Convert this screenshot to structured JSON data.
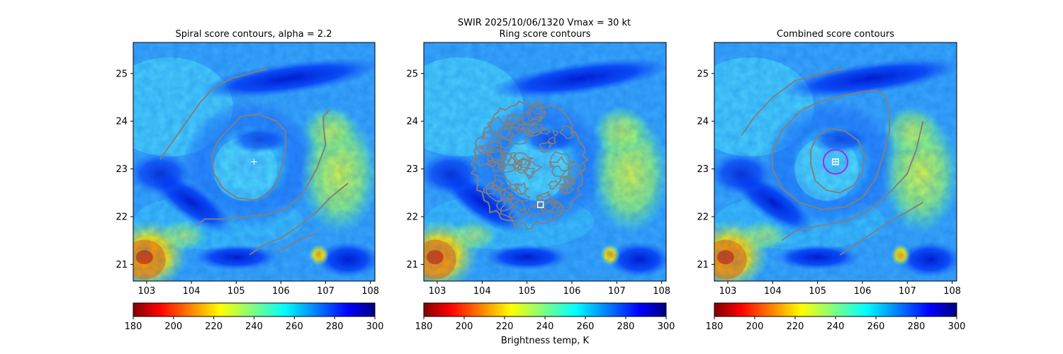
{
  "figure": {
    "suptitle_line1": "SWIR  2025/10/06/1320    Vmax = 30 kt",
    "colorbar_label": "Brightness temp, K"
  },
  "chart_data": [
    {
      "type": "heatmap",
      "title": "Spiral score contours, alpha =  2.2",
      "xlim": [
        102.7,
        108.1
      ],
      "ylim": [
        20.65,
        25.65
      ],
      "xticks": [
        103,
        104,
        105,
        106,
        107,
        108
      ],
      "yticks": [
        21,
        22,
        23,
        24,
        25
      ],
      "colormap": "jet_r",
      "color_range": [
        180,
        300
      ],
      "colorbar_ticks": [
        180,
        200,
        220,
        240,
        260,
        280,
        300
      ],
      "center_marker": {
        "type": "cross",
        "lon": 105.4,
        "lat": 23.15,
        "color": "#ffffff"
      },
      "contours": [
        [
          [
            103.3,
            23.2
          ],
          [
            103.6,
            23.6
          ],
          [
            103.9,
            24.0
          ],
          [
            104.2,
            24.4
          ],
          [
            104.5,
            24.7
          ],
          [
            104.9,
            24.9
          ],
          [
            105.3,
            25.0
          ],
          [
            105.7,
            25.1
          ]
        ],
        [
          [
            104.8,
            23.8
          ],
          [
            105.1,
            24.1
          ],
          [
            105.5,
            24.15
          ],
          [
            105.9,
            24.0
          ],
          [
            106.1,
            23.8
          ],
          [
            106.1,
            23.4
          ],
          [
            106.0,
            23.0
          ],
          [
            105.9,
            22.7
          ],
          [
            105.7,
            22.45
          ],
          [
            105.4,
            22.35
          ],
          [
            105.0,
            22.4
          ],
          [
            104.7,
            22.6
          ],
          [
            104.5,
            22.9
          ],
          [
            104.45,
            23.3
          ],
          [
            104.6,
            23.6
          ],
          [
            104.8,
            23.8
          ]
        ],
        [
          [
            104.1,
            21.8
          ],
          [
            104.3,
            21.95
          ],
          [
            104.7,
            21.95
          ],
          [
            105.2,
            22.0
          ],
          [
            105.7,
            22.05
          ],
          [
            106.1,
            22.15
          ],
          [
            106.5,
            22.5
          ],
          [
            106.8,
            23.0
          ],
          [
            107.0,
            23.5
          ],
          [
            106.95,
            23.9
          ],
          [
            106.95,
            24.1
          ],
          [
            107.1,
            24.25
          ]
        ],
        [
          [
            105.3,
            21.2
          ],
          [
            105.6,
            21.4
          ],
          [
            106.0,
            21.55
          ],
          [
            106.4,
            21.8
          ],
          [
            106.8,
            22.1
          ],
          [
            107.1,
            22.4
          ],
          [
            107.5,
            22.7
          ]
        ],
        [
          [
            105.9,
            21.25
          ],
          [
            106.2,
            21.4
          ],
          [
            106.5,
            21.55
          ],
          [
            106.8,
            21.65
          ]
        ]
      ]
    },
    {
      "type": "heatmap",
      "title": "Ring score contours",
      "xlim": [
        102.7,
        108.1
      ],
      "ylim": [
        20.65,
        25.65
      ],
      "xticks": [
        103,
        104,
        105,
        106,
        107,
        108
      ],
      "yticks": [
        21,
        22,
        23,
        24,
        25
      ],
      "colormap": "jet_r",
      "color_range": [
        180,
        300
      ],
      "colorbar_ticks": [
        180,
        200,
        220,
        240,
        260,
        280,
        300
      ],
      "center_marker": {
        "type": "square",
        "lon": 105.3,
        "lat": 22.25,
        "color": "#ffffff"
      },
      "ring_contour_region": {
        "center": [
          105.05,
          23.1
        ],
        "radius_lon": 1.25,
        "radius_lat": 1.3
      }
    },
    {
      "type": "heatmap",
      "title": "Combined score contours",
      "xlim": [
        102.7,
        108.1
      ],
      "ylim": [
        20.65,
        25.65
      ],
      "xticks": [
        103,
        104,
        105,
        106,
        107,
        108
      ],
      "yticks": [
        21,
        22,
        23,
        24,
        25
      ],
      "colormap": "jet_r",
      "color_range": [
        180,
        300
      ],
      "colorbar_ticks": [
        180,
        200,
        220,
        240,
        260,
        280,
        300
      ],
      "center_marker": {
        "type": "square-cross",
        "lon": 105.4,
        "lat": 23.15,
        "color": "#ffffff"
      },
      "radius_circle": {
        "lon": 105.4,
        "lat": 23.15,
        "radius_deg": 0.27,
        "color": "#9b30d9"
      },
      "contours": [
        [
          [
            105.3,
            23.85
          ],
          [
            105.6,
            23.8
          ],
          [
            105.9,
            23.6
          ],
          [
            106.05,
            23.3
          ],
          [
            106.0,
            22.95
          ],
          [
            105.8,
            22.65
          ],
          [
            105.5,
            22.5
          ],
          [
            105.2,
            22.55
          ],
          [
            104.95,
            22.75
          ],
          [
            104.85,
            23.1
          ],
          [
            104.85,
            23.4
          ],
          [
            105.0,
            23.7
          ],
          [
            105.3,
            23.85
          ]
        ],
        [
          [
            105.4,
            24.5
          ],
          [
            105.9,
            24.6
          ],
          [
            106.3,
            24.65
          ],
          [
            106.5,
            24.55
          ],
          [
            106.6,
            24.2
          ],
          [
            106.6,
            23.8
          ],
          [
            106.5,
            23.4
          ],
          [
            106.3,
            22.8
          ],
          [
            106.0,
            22.4
          ],
          [
            105.6,
            22.2
          ],
          [
            105.1,
            22.15
          ],
          [
            104.6,
            22.3
          ],
          [
            104.2,
            22.6
          ],
          [
            104.0,
            23.0
          ],
          [
            104.0,
            23.4
          ],
          [
            104.2,
            23.8
          ],
          [
            104.6,
            24.2
          ],
          [
            105.0,
            24.4
          ],
          [
            105.4,
            24.5
          ]
        ],
        [
          [
            103.3,
            23.7
          ],
          [
            103.6,
            24.1
          ],
          [
            104.0,
            24.5
          ],
          [
            104.5,
            24.85
          ],
          [
            105.1,
            25.0
          ],
          [
            105.6,
            25.1
          ]
        ],
        [
          [
            104.2,
            21.5
          ],
          [
            104.5,
            21.7
          ],
          [
            105.0,
            21.8
          ],
          [
            105.6,
            21.9
          ],
          [
            106.1,
            22.1
          ],
          [
            106.6,
            22.5
          ],
          [
            107.0,
            22.9
          ],
          [
            107.2,
            23.4
          ],
          [
            107.3,
            23.8
          ],
          [
            107.35,
            24.0
          ]
        ],
        [
          [
            105.5,
            21.2
          ],
          [
            105.9,
            21.45
          ],
          [
            106.3,
            21.7
          ],
          [
            106.6,
            21.9
          ],
          [
            106.9,
            22.05
          ],
          [
            107.35,
            22.3
          ]
        ]
      ]
    }
  ]
}
